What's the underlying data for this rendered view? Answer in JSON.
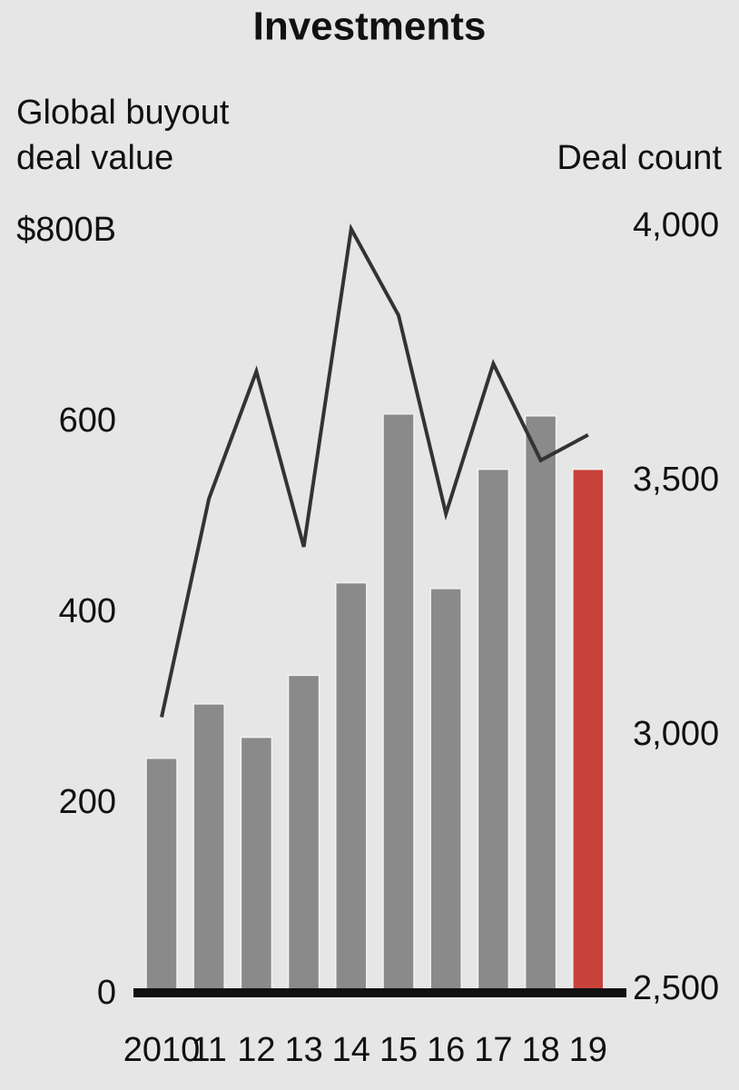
{
  "chart_data": {
    "type": "bar",
    "title": "Investments",
    "ylabel": [
      "Global buyout",
      "deal value"
    ],
    "y2label": "Deal count",
    "categories": [
      "2010",
      "11",
      "12",
      "13",
      "14",
      "15",
      "16",
      "17",
      "18",
      "19"
    ],
    "series": [
      {
        "type": "bar",
        "colors": [
          "#8a8a8a",
          "#8a8a8a",
          "#8a8a8a",
          "#8a8a8a",
          "#8a8a8a",
          "#8a8a8a",
          "#8a8a8a",
          "#8a8a8a",
          "#8a8a8a",
          "#c8423a"
        ],
        "values": [
          245,
          302,
          267,
          332,
          429,
          606,
          423,
          548,
          604,
          548
        ]
      },
      {
        "type": "line",
        "axis": "y2",
        "color": "#333333",
        "values": [
          3040,
          3470,
          3720,
          3375,
          4000,
          3830,
          3440,
          3735,
          3545,
          3595
        ]
      }
    ],
    "ylim": [
      0,
      800
    ],
    "yticks": [
      0,
      200,
      400,
      600,
      {
        "value": 800,
        "label": "$800B"
      }
    ],
    "y2lim": [
      2500,
      4000
    ],
    "y2ticks": [
      {
        "value": 2500,
        "label": "2,500"
      },
      {
        "value": 3000,
        "label": "3,000"
      },
      {
        "value": 3500,
        "label": "3,500"
      },
      {
        "value": 4000,
        "label": "4,000"
      }
    ]
  }
}
